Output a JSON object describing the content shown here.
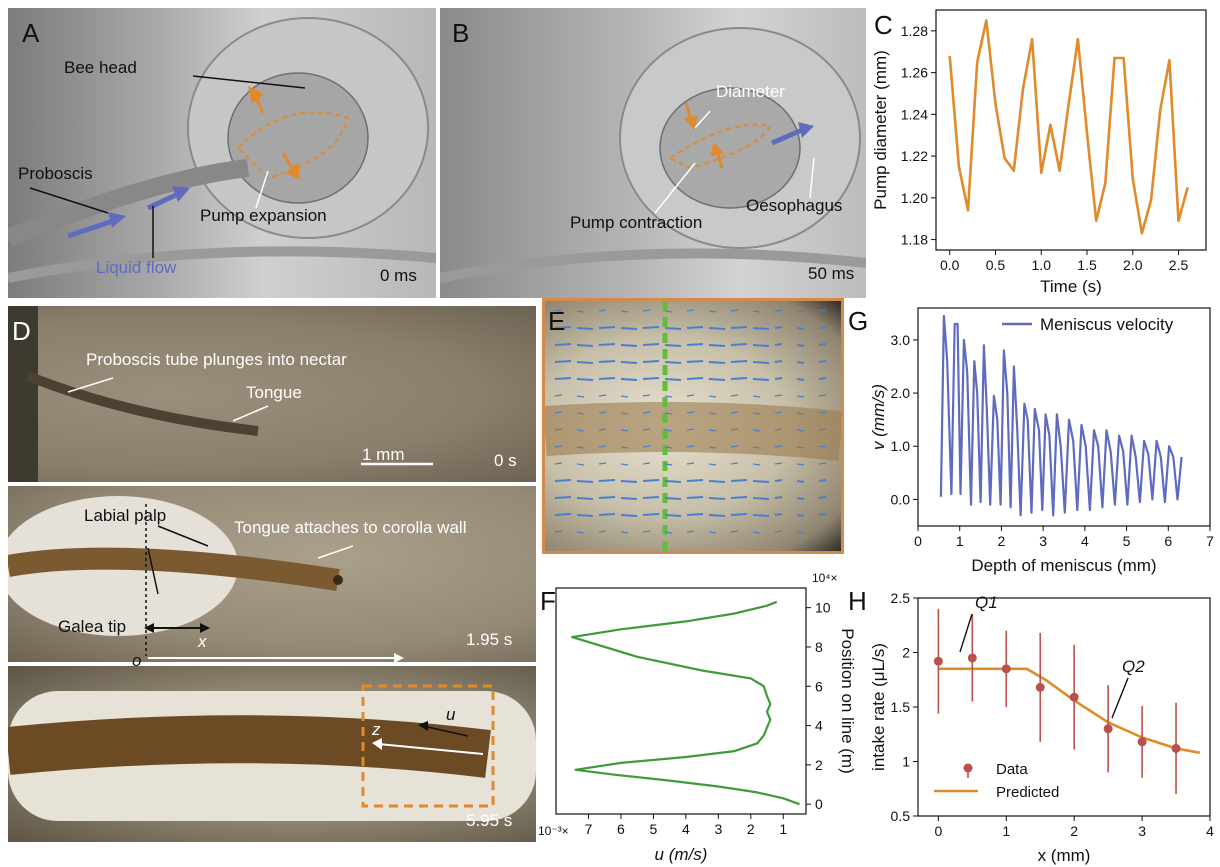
{
  "panels": {
    "A": {
      "label": "A",
      "bee_head": "Bee head",
      "proboscis": "Proboscis",
      "liquid_flow": "Liquid flow",
      "pump_expansion": "Pump expansion",
      "time": "0 ms"
    },
    "B": {
      "label": "B",
      "diameter": "Diameter",
      "pump_contraction": "Pump contraction",
      "oesophagus": "Oesophagus",
      "time": "50 ms"
    },
    "C": {
      "label": "C"
    },
    "D": {
      "label": "D",
      "proboscis_tube": "Proboscis tube plunges into nectar",
      "tongue": "Tongue",
      "scale_bar": "1 mm",
      "time1": "0 s",
      "labial_palp": "Labial palp",
      "tongue_attaches": "Tongue attaches to corolla wall",
      "galea_tip": "Galea tip",
      "x_label": "x",
      "o_label": "o",
      "time2": "1.95 s",
      "u_label": "u",
      "z_label": "z",
      "time3": "5.95 s"
    },
    "E": {
      "label": "E"
    },
    "F": {
      "label": "F"
    },
    "G": {
      "label": "G"
    },
    "H": {
      "label": "H"
    }
  },
  "colors": {
    "orange": "#e08a2a",
    "blue": "#5f6bbf",
    "green": "#3f9a3a",
    "red_data": "#b9504a",
    "panel_border": "#d38b4a"
  },
  "chart_data": [
    {
      "id": "C",
      "type": "line",
      "xlabel": "Time (s)",
      "ylabel": "Pump diameter (mm)",
      "xlim": [
        -0.15,
        2.8
      ],
      "ylim": [
        1.175,
        1.29
      ],
      "xticks": [
        0.0,
        0.5,
        1.0,
        1.5,
        2.0,
        2.5
      ],
      "xtick_labels": [
        "0.0",
        "0.5",
        "1.0",
        "1.5",
        "2.0",
        "2.5"
      ],
      "yticks": [
        1.18,
        1.2,
        1.22,
        1.24,
        1.26,
        1.28
      ],
      "ytick_labels": [
        "1.18",
        "1.20",
        "1.22",
        "1.24",
        "1.26",
        "1.28"
      ],
      "series": [
        {
          "color": "#e08a2a",
          "x": [
            0.0,
            0.1,
            0.2,
            0.3,
            0.4,
            0.5,
            0.6,
            0.7,
            0.8,
            0.9,
            1.0,
            1.1,
            1.2,
            1.3,
            1.4,
            1.5,
            1.6,
            1.7,
            1.8,
            1.9,
            2.0,
            2.1,
            2.2,
            2.3,
            2.4,
            2.5,
            2.6
          ],
          "y": [
            1.268,
            1.215,
            1.194,
            1.265,
            1.285,
            1.245,
            1.219,
            1.213,
            1.252,
            1.276,
            1.212,
            1.235,
            1.213,
            1.245,
            1.276,
            1.231,
            1.189,
            1.207,
            1.267,
            1.267,
            1.209,
            1.183,
            1.199,
            1.242,
            1.266,
            1.189,
            1.205
          ]
        }
      ]
    },
    {
      "id": "F",
      "type": "line",
      "xlabel": "u (m/s)",
      "ylabel": "Position on line (m)",
      "x_multiplier": "10⁻³×",
      "y_multiplier": "10⁴×",
      "xlim": [
        8.0,
        0.3
      ],
      "ylim": [
        -0.5,
        11.0
      ],
      "xticks": [
        7,
        6,
        5,
        4,
        3,
        2,
        1
      ],
      "xtick_labels": [
        "7",
        "6",
        "5",
        "4",
        "3",
        "2",
        "1"
      ],
      "yticks": [
        0,
        2,
        4,
        6,
        8,
        10
      ],
      "ytick_labels": [
        "0",
        "2",
        "4",
        "6",
        "8",
        "10"
      ],
      "series": [
        {
          "color": "#3f9a3a",
          "x": [
            0.5,
            1.0,
            1.8,
            3.0,
            4.5,
            6.2,
            7.4,
            6.0,
            4.0,
            2.5,
            1.8,
            1.6,
            1.5,
            1.4,
            1.5,
            1.4,
            1.5,
            1.6,
            2.0,
            3.5,
            5.5,
            7.5,
            6.0,
            4.0,
            2.5,
            1.5,
            1.2
          ],
          "y": [
            0.0,
            0.3,
            0.6,
            0.9,
            1.2,
            1.5,
            1.75,
            2.1,
            2.4,
            2.7,
            3.1,
            3.5,
            3.9,
            4.3,
            4.7,
            5.1,
            5.5,
            6.0,
            6.4,
            6.8,
            7.5,
            8.5,
            8.9,
            9.3,
            9.7,
            10.1,
            10.3
          ]
        }
      ]
    },
    {
      "id": "G",
      "type": "line",
      "xlabel": "Depth of meniscus (mm)",
      "ylabel": "v (mm/s)",
      "xlim": [
        0,
        7
      ],
      "ylim": [
        -0.5,
        3.6
      ],
      "xticks": [
        0,
        1,
        2,
        3,
        4,
        5,
        6,
        7
      ],
      "xtick_labels": [
        "0",
        "1",
        "2",
        "3",
        "4",
        "5",
        "6",
        "7"
      ],
      "yticks": [
        0.0,
        1.0,
        2.0,
        3.0
      ],
      "ytick_labels": [
        "0.0",
        "1.0",
        "2.0",
        "3.0"
      ],
      "legend": {
        "entries": [
          "Meniscus velocity"
        ],
        "placement": "top-right"
      },
      "series": [
        {
          "name": "Meniscus velocity",
          "color": "#5f6bbf",
          "x": [
            0.55,
            0.62,
            0.7,
            0.8,
            0.88,
            0.95,
            1.02,
            1.1,
            1.18,
            1.27,
            1.35,
            1.42,
            1.5,
            1.58,
            1.65,
            1.73,
            1.82,
            1.9,
            1.98,
            2.06,
            2.14,
            2.22,
            2.3,
            2.38,
            2.46,
            2.55,
            2.63,
            2.72,
            2.8,
            2.9,
            2.98,
            3.06,
            3.15,
            3.24,
            3.33,
            3.42,
            3.52,
            3.62,
            3.72,
            3.82,
            3.92,
            4.02,
            4.12,
            4.22,
            4.32,
            4.42,
            4.52,
            4.62,
            4.72,
            4.82,
            4.92,
            5.02,
            5.12,
            5.22,
            5.32,
            5.42,
            5.52,
            5.62,
            5.72,
            5.82,
            5.92,
            6.02,
            6.12,
            6.22,
            6.32
          ],
          "y": [
            0.05,
            3.45,
            2.6,
            0.1,
            3.3,
            3.3,
            0.1,
            3.0,
            2.4,
            -0.1,
            2.6,
            2.0,
            -0.05,
            2.9,
            1.7,
            -0.1,
            1.95,
            1.5,
            -0.1,
            2.8,
            2.0,
            -0.15,
            2.5,
            1.3,
            -0.3,
            1.8,
            1.5,
            -0.25,
            1.7,
            1.3,
            -0.2,
            1.6,
            1.2,
            -0.3,
            1.6,
            1.0,
            -0.25,
            1.5,
            1.1,
            -0.2,
            1.4,
            1.0,
            -0.2,
            1.3,
            1.0,
            -0.15,
            1.3,
            0.9,
            -0.1,
            1.2,
            0.9,
            -0.1,
            1.2,
            0.8,
            -0.05,
            1.1,
            0.85,
            0.0,
            1.1,
            0.8,
            -0.05,
            1.0,
            0.8,
            0.0,
            0.8
          ]
        }
      ]
    },
    {
      "id": "H",
      "type": "scatter",
      "xlabel": "x (mm)",
      "ylabel": "intake rate (μL/s)",
      "xlim": [
        -0.3,
        4.0
      ],
      "ylim": [
        0.5,
        2.5
      ],
      "xticks": [
        0,
        1,
        2,
        3,
        4
      ],
      "xtick_labels": [
        "0",
        "1",
        "2",
        "3",
        "4"
      ],
      "yticks": [
        0.5,
        1.0,
        1.5,
        2.0,
        2.5
      ],
      "ytick_labels": [
        "0.5",
        "1",
        "1.5",
        "2",
        "2.5"
      ],
      "legend": {
        "entries": [
          "Data",
          "Predicted"
        ],
        "placement": "bottom-left"
      },
      "annotations": [
        "Q1",
        "Q2"
      ],
      "series": [
        {
          "name": "Data",
          "color": "#b9504a",
          "kind": "errorbar",
          "x": [
            0,
            0.5,
            1.0,
            1.5,
            2.0,
            2.5,
            3.0,
            3.5
          ],
          "y": [
            1.92,
            1.95,
            1.85,
            1.68,
            1.59,
            1.3,
            1.18,
            1.12
          ],
          "err": [
            0.48,
            0.4,
            0.35,
            0.5,
            0.48,
            0.4,
            0.33,
            0.42
          ]
        },
        {
          "name": "Predicted",
          "color": "#e08a2a",
          "kind": "line",
          "x": [
            0,
            0.5,
            1.0,
            1.3,
            1.6,
            2.0,
            2.5,
            3.0,
            3.5,
            3.85
          ],
          "y": [
            1.85,
            1.85,
            1.85,
            1.85,
            1.74,
            1.56,
            1.36,
            1.22,
            1.12,
            1.08
          ]
        }
      ]
    }
  ]
}
